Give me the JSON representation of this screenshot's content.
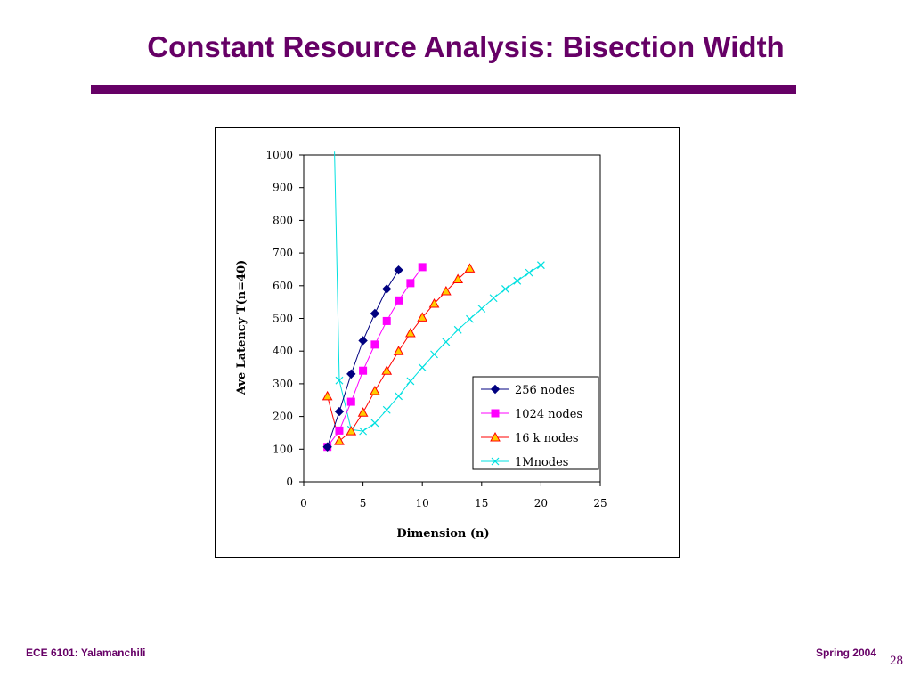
{
  "slide": {
    "title": "Constant Resource Analysis: Bisection Width",
    "footer_left": "ECE 6101: Yalamanchili",
    "footer_right": "Spring 2004",
    "page_number": "28",
    "accent_color": "#660066"
  },
  "chart_data": {
    "type": "line",
    "title": "",
    "xlabel": "Dimension (n)",
    "ylabel": "Ave Latency T(n=40)",
    "xlim": [
      0,
      25
    ],
    "ylim": [
      0,
      1000
    ],
    "x_ticks": [
      0,
      5,
      10,
      15,
      20,
      25
    ],
    "y_ticks": [
      0,
      100,
      200,
      300,
      400,
      500,
      600,
      700,
      800,
      900,
      1000
    ],
    "x_tick_labels": [
      "0",
      "5",
      "10",
      "15",
      "20",
      "25"
    ],
    "y_tick_labels": [
      "0",
      "100",
      "200",
      "300",
      "400",
      "500",
      "600",
      "700",
      "800",
      "900",
      "1000"
    ],
    "grid": false,
    "legend_position": "bottom-right",
    "series": [
      {
        "name": "256 nodes",
        "color": "#000080",
        "marker": "diamond",
        "x": [
          2,
          3,
          4,
          5,
          6,
          7,
          8
        ],
        "y": [
          107,
          215,
          330,
          432,
          515,
          590,
          648
        ]
      },
      {
        "name": "1024 nodes",
        "color": "#ff00ff",
        "marker": "square",
        "x": [
          2,
          3,
          4,
          5,
          6,
          7,
          8,
          9,
          10
        ],
        "y": [
          107,
          157,
          245,
          340,
          420,
          492,
          555,
          608,
          657
        ]
      },
      {
        "name": "16 k nodes",
        "color": "#ff0000",
        "marker": "triangle",
        "x": [
          2,
          3,
          4,
          5,
          6,
          7,
          8,
          9,
          10,
          11,
          12,
          13,
          14
        ],
        "y": [
          262,
          125,
          155,
          212,
          278,
          340,
          400,
          455,
          503,
          545,
          583,
          620,
          653
        ]
      },
      {
        "name": "1Mnodes",
        "color": "#00e0e0",
        "marker": "x",
        "x": [
          2.6,
          3,
          4,
          5,
          6,
          7,
          8,
          9,
          10,
          11,
          12,
          13,
          14,
          15,
          16,
          17,
          18,
          19,
          20
        ],
        "y": [
          1010,
          310,
          160,
          155,
          180,
          220,
          262,
          308,
          350,
          390,
          428,
          465,
          498,
          530,
          562,
          590,
          615,
          640,
          663
        ]
      }
    ]
  }
}
